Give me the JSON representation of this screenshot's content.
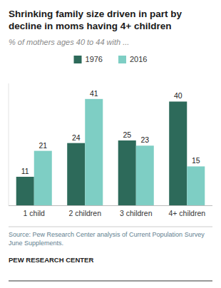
{
  "chart_data": {
    "type": "bar",
    "title": "Shrinking family size driven in part by\ndecline in moms having 4+ children",
    "subtitle": "% of mothers ages 40 to 44 with ...",
    "categories": [
      "1 child",
      "2 children",
      "3 children",
      "4+ children"
    ],
    "series": [
      {
        "name": "1976",
        "color": "#2d6a5a",
        "values": [
          11,
          24,
          25,
          40
        ]
      },
      {
        "name": "2016",
        "color": "#7ecec4",
        "values": [
          21,
          41,
          23,
          15
        ]
      }
    ],
    "ylim": [
      0,
      47
    ],
    "data_labels": true,
    "tick_labels": "x",
    "source": "Source: Pew Research Center analysis of Current Population Survey\nJune Supplements.",
    "footer": "PEW RESEARCH CENTER"
  }
}
